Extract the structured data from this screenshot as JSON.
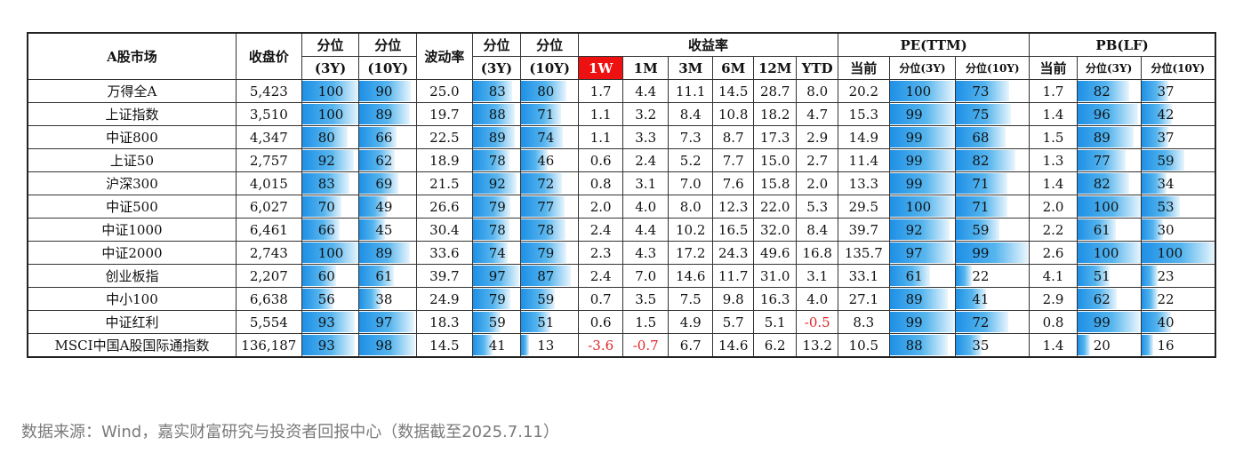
{
  "headers": {
    "market": "A股市场",
    "close": "收盘价",
    "pct3y_top": "分位",
    "pct3y_bot": "(3Y)",
    "pct10y_top": "分位",
    "pct10y_bot": "(10Y)",
    "vol": "波动率",
    "vpct3y_top": "分位",
    "vpct3y_bot": "(3Y)",
    "vpct10y_top": "分位",
    "vpct10y_bot": "(10Y)",
    "returns": "收益率",
    "r1w": "1W",
    "r1m": "1M",
    "r3m": "3M",
    "r6m": "6M",
    "r12m": "12M",
    "rytd": "YTD",
    "pe": "PE(TTM)",
    "pe_now": "当前",
    "pe_p3": "分位(3Y)",
    "pe_p10": "分位(10Y)",
    "pb": "PB(LF)",
    "pb_now": "当前",
    "pb_p3": "分位(3Y)",
    "pb_p10": "分位(10Y)"
  },
  "chart_data": {
    "type": "table",
    "columns": [
      "A股市场",
      "收盘价",
      "分位(3Y)",
      "分位(10Y)",
      "波动率",
      "分位(3Y)",
      "分位(10Y)",
      "1W",
      "1M",
      "3M",
      "6M",
      "12M",
      "YTD",
      "PE当前",
      "PE分位(3Y)",
      "PE分位(10Y)",
      "PB当前",
      "PB分位(3Y)",
      "PB分位(10Y)"
    ],
    "rows": [
      [
        "万得全A",
        "5,423",
        100,
        90,
        "25.0",
        83,
        80,
        "1.7",
        "4.4",
        "11.1",
        "14.5",
        "28.7",
        "8.0",
        "20.2",
        100,
        73,
        "1.7",
        82,
        37
      ],
      [
        "上证指数",
        "3,510",
        100,
        89,
        "19.7",
        88,
        71,
        "1.1",
        "3.2",
        "8.4",
        "10.8",
        "18.2",
        "4.7",
        "15.3",
        99,
        75,
        "1.4",
        96,
        42
      ],
      [
        "中证800",
        "4,347",
        80,
        66,
        "22.5",
        89,
        74,
        "1.1",
        "3.3",
        "7.3",
        "8.7",
        "17.3",
        "2.9",
        "14.9",
        99,
        68,
        "1.5",
        89,
        37
      ],
      [
        "上证50",
        "2,757",
        92,
        62,
        "18.9",
        78,
        46,
        "0.6",
        "2.4",
        "5.2",
        "7.7",
        "15.0",
        "2.7",
        "11.4",
        99,
        82,
        "1.3",
        77,
        59
      ],
      [
        "沪深300",
        "4,015",
        83,
        69,
        "21.5",
        92,
        72,
        "0.8",
        "3.1",
        "7.0",
        "7.6",
        "15.8",
        "2.0",
        "13.3",
        99,
        71,
        "1.4",
        82,
        34
      ],
      [
        "中证500",
        "6,027",
        70,
        49,
        "26.6",
        79,
        77,
        "2.0",
        "4.0",
        "8.0",
        "12.3",
        "22.0",
        "5.3",
        "29.5",
        100,
        71,
        "2.0",
        100,
        53
      ],
      [
        "中证1000",
        "6,461",
        66,
        45,
        "30.4",
        78,
        78,
        "2.4",
        "4.4",
        "10.2",
        "16.5",
        "32.0",
        "8.4",
        "39.7",
        92,
        59,
        "2.2",
        61,
        30
      ],
      [
        "中证2000",
        "2,743",
        100,
        89,
        "33.6",
        74,
        79,
        "2.3",
        "4.3",
        "17.2",
        "24.3",
        "49.6",
        "16.8",
        "135.7",
        97,
        99,
        "2.6",
        100,
        100
      ],
      [
        "创业板指",
        "2,207",
        60,
        61,
        "39.7",
        97,
        87,
        "2.4",
        "7.0",
        "14.6",
        "11.7",
        "31.0",
        "3.1",
        "33.1",
        61,
        22,
        "4.1",
        51,
        23
      ],
      [
        "中小100",
        "6,638",
        56,
        38,
        "24.9",
        79,
        59,
        "0.7",
        "3.5",
        "7.5",
        "9.8",
        "16.3",
        "4.0",
        "27.1",
        89,
        41,
        "2.9",
        62,
        22
      ],
      [
        "中证红利",
        "5,554",
        93,
        97,
        "18.3",
        59,
        51,
        "0.6",
        "1.5",
        "4.9",
        "5.7",
        "5.1",
        "-0.5",
        "8.3",
        99,
        72,
        "0.8",
        99,
        40
      ],
      [
        "MSCI中国A股国际通指数",
        "136,187",
        93,
        98,
        "14.5",
        41,
        13,
        "-3.6",
        "-0.7",
        "6.7",
        "14.6",
        "6.2",
        "13.2",
        "10.5",
        88,
        35,
        "1.4",
        20,
        16
      ]
    ],
    "bar_columns": [
      2,
      3,
      5,
      6,
      14,
      15,
      17,
      18
    ],
    "bar_scale": [
      0,
      100
    ]
  },
  "colors": {
    "highlight_header": "#ee1111",
    "negative_text": "#e0262a",
    "bar_blue": "#1e90e6"
  },
  "footer": {
    "source": "数据来源：Wind，嘉实财富研究与投资者回报中心（数据截至2025.7.11）"
  }
}
